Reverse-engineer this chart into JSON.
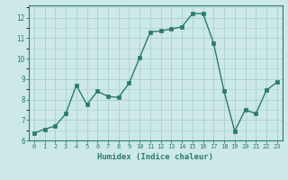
{
  "x": [
    0,
    1,
    2,
    3,
    4,
    5,
    6,
    7,
    8,
    9,
    10,
    11,
    12,
    13,
    14,
    15,
    16,
    17,
    18,
    19,
    20,
    21,
    22,
    23
  ],
  "y": [
    6.35,
    6.55,
    6.7,
    7.3,
    8.7,
    7.75,
    8.4,
    8.15,
    8.1,
    8.8,
    10.05,
    11.3,
    11.35,
    11.45,
    11.55,
    12.2,
    12.2,
    10.75,
    8.4,
    6.45,
    7.5,
    7.3,
    8.45,
    8.85
  ],
  "xlabel": "Humidex (Indice chaleur)",
  "ylim": [
    6,
    12.6
  ],
  "xlim": [
    -0.5,
    23.5
  ],
  "yticks": [
    6,
    7,
    8,
    9,
    10,
    11,
    12
  ],
  "xticks": [
    0,
    1,
    2,
    3,
    4,
    5,
    6,
    7,
    8,
    9,
    10,
    11,
    12,
    13,
    14,
    15,
    16,
    17,
    18,
    19,
    20,
    21,
    22,
    23
  ],
  "line_color": "#2d7a6a",
  "marker_color": "#2d7a6a",
  "bg_color": "#cce9e7",
  "plot_bg_color": "#cce9e7",
  "grid_color": "#aacfcc",
  "axis_color": "#2d7a6a",
  "label_color": "#2d7a6a",
  "tick_color": "#2d7a6a",
  "bottom_bar_color": "#5a9e90"
}
